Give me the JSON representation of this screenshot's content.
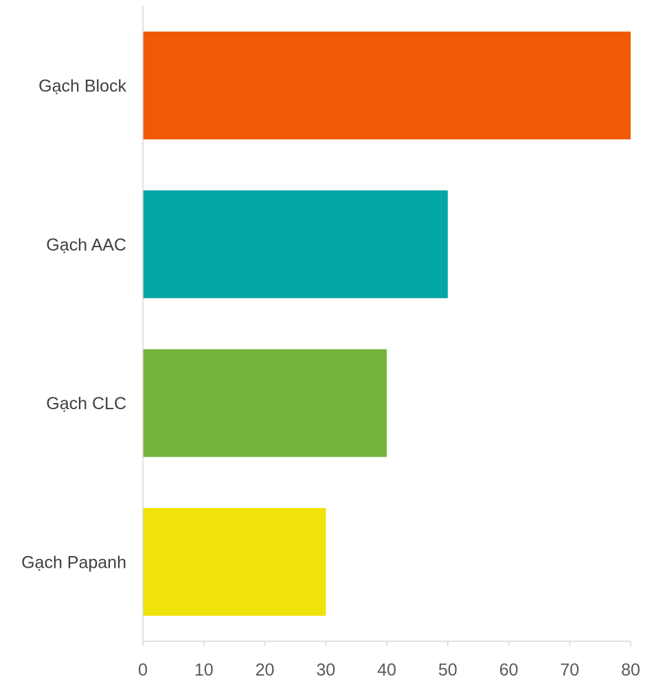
{
  "chart_data": {
    "type": "bar",
    "orientation": "horizontal",
    "categories": [
      "Gạch Block",
      "Gạch AAC",
      "Gạch CLC",
      "Gạch Papanh"
    ],
    "values": [
      80,
      50,
      40,
      30
    ],
    "colors": [
      "#f05a05",
      "#03a5a6",
      "#74b33c",
      "#f0e30b"
    ],
    "xlim": [
      0,
      80
    ],
    "xticks": [
      0,
      10,
      20,
      30,
      40,
      50,
      60,
      70,
      80
    ],
    "tick_labels": [
      "0",
      "10",
      "20",
      "30",
      "40",
      "50",
      "60",
      "70",
      "80"
    ],
    "grid": false,
    "legend": "none",
    "title": "",
    "xlabel": "",
    "ylabel": ""
  },
  "colors": {
    "axis": "#d9d9d9",
    "category_text": "#404040",
    "tick_text": "#595959",
    "background": "#ffffff"
  }
}
